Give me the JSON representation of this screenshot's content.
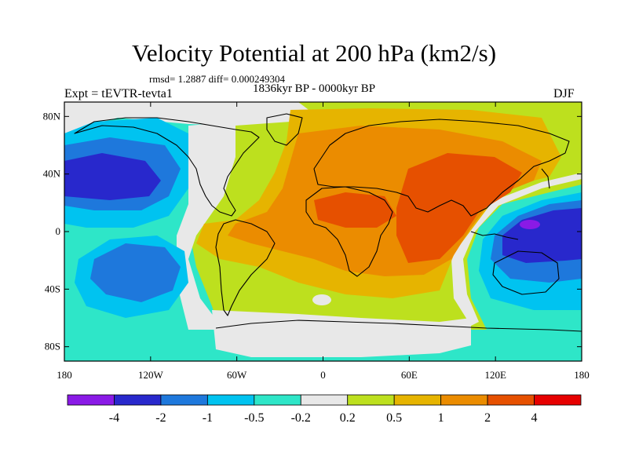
{
  "title": "Velocity Potential at 200 hPa (km2/s)",
  "stats_text": "rmsd= 1.2887 diff= 0.000249304",
  "period_text": "1836kyr BP - 0000kyr BP",
  "experiment_text": "Expt = tEVTR-tevta1",
  "season_text": "DJF",
  "map": {
    "projection": "cylindrical-equidistant",
    "lon_range": [
      -180,
      180
    ],
    "lat_range": [
      -90,
      90
    ],
    "lat_ticks": [
      {
        "value": 80,
        "label": "80N"
      },
      {
        "value": 40,
        "label": "40N"
      },
      {
        "value": 0,
        "label": "0"
      },
      {
        "value": -40,
        "label": "40S"
      },
      {
        "value": -80,
        "label": "80S"
      }
    ],
    "lon_ticks": [
      {
        "value": -180,
        "label": "180"
      },
      {
        "value": -120,
        "label": "120W"
      },
      {
        "value": -60,
        "label": "60W"
      },
      {
        "value": 0,
        "label": "0"
      },
      {
        "value": 60,
        "label": "60E"
      },
      {
        "value": 120,
        "label": "120E"
      },
      {
        "value": 180,
        "label": "180"
      }
    ]
  },
  "colorbar": {
    "colors": [
      "#8a1ae6",
      "#2828cc",
      "#1e78dc",
      "#00c3f0",
      "#2ee6c8",
      "#e8e8e8",
      "#bde01e",
      "#e6b400",
      "#eb8c00",
      "#e65000",
      "#e60000"
    ],
    "labels": [
      "-4",
      "-2",
      "-1",
      "-0.5",
      "-0.2",
      "0.2",
      "0.5",
      "1",
      "2",
      "4"
    ]
  }
}
